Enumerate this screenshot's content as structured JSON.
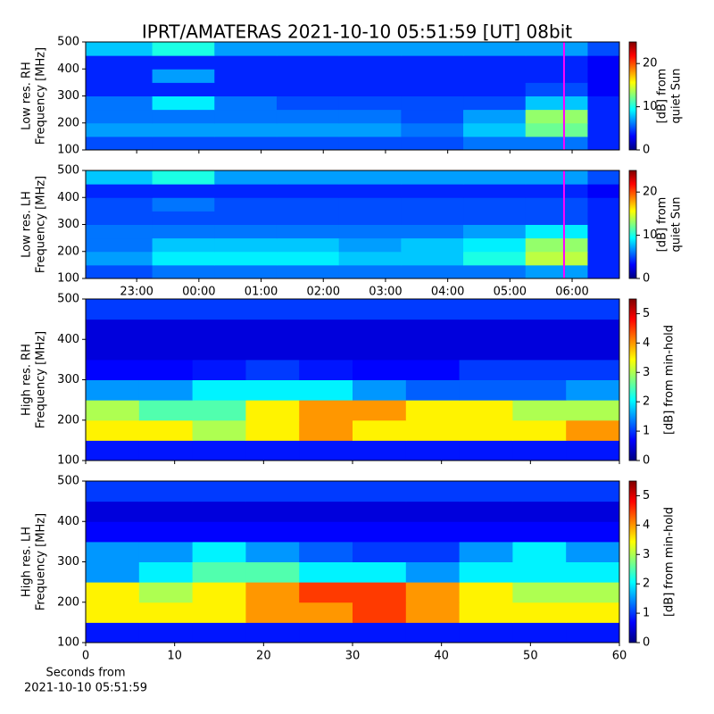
{
  "chart_data": [
    {
      "type": "heatmap",
      "title": "IPRT/AMATERAS 2021-10-10 05:51:59 [UT]   08bit",
      "ylabel": [
        "Low res. RH",
        "Frequency [MHz]"
      ],
      "colormap": "jet",
      "xlim": [
        -1.82,
        6.76
      ],
      "xticks": [
        {
          "value": -1,
          "label": "23:00"
        },
        {
          "value": 0,
          "label": "00:00"
        },
        {
          "value": 1,
          "label": "01:00"
        },
        {
          "value": 2,
          "label": "02:00"
        },
        {
          "value": 3,
          "label": "03:00"
        },
        {
          "value": 4,
          "label": "04:00"
        },
        {
          "value": 5,
          "label": "05:00"
        },
        {
          "value": 6,
          "label": "06:00"
        }
      ],
      "show_xticklabels": false,
      "ylim": [
        100,
        500
      ],
      "yticks": [
        100,
        200,
        300,
        400,
        500
      ],
      "x_edges": [
        -1.82,
        -0.75,
        0.25,
        1.25,
        2.25,
        3.25,
        4.25,
        5.25,
        6.25,
        6.76
      ],
      "y_edges": [
        100,
        150,
        200,
        250,
        300,
        350,
        400,
        450,
        500
      ],
      "z": [
        [
          5,
          5,
          5,
          5,
          5,
          5,
          6,
          6,
          4
        ],
        [
          7,
          7,
          7,
          7,
          7,
          6,
          8,
          12,
          4
        ],
        [
          6,
          6,
          6,
          6,
          6,
          5,
          7,
          13,
          4
        ],
        [
          6,
          9,
          6,
          5,
          5,
          5,
          5,
          8,
          4
        ],
        [
          4,
          4,
          4,
          4,
          4,
          4,
          4,
          5,
          3
        ],
        [
          4,
          7,
          4,
          4,
          4,
          4,
          4,
          4,
          3
        ],
        [
          4,
          4,
          4,
          4,
          4,
          4,
          4,
          4,
          3
        ],
        [
          8,
          10,
          7,
          7,
          7,
          7,
          7,
          7,
          5
        ]
      ],
      "markers": [
        {
          "x": 5.87,
          "color": "#ff00ff"
        }
      ],
      "clim": [
        0,
        25
      ],
      "cticks": [
        0,
        10,
        20
      ],
      "cbar_label": [
        "[dB] from",
        "quiet Sun"
      ]
    },
    {
      "type": "heatmap",
      "ylabel": [
        "Low res. LH",
        "Frequency [MHz]"
      ],
      "colormap": "jet",
      "xlim": [
        -1.82,
        6.76
      ],
      "xticks": [
        {
          "value": -1,
          "label": "23:00"
        },
        {
          "value": 0,
          "label": "00:00"
        },
        {
          "value": 1,
          "label": "01:00"
        },
        {
          "value": 2,
          "label": "02:00"
        },
        {
          "value": 3,
          "label": "03:00"
        },
        {
          "value": 4,
          "label": "04:00"
        },
        {
          "value": 5,
          "label": "05:00"
        },
        {
          "value": 6,
          "label": "06:00"
        }
      ],
      "show_xticklabels": true,
      "ylim": [
        100,
        500
      ],
      "yticks": [
        100,
        200,
        300,
        400,
        500
      ],
      "x_edges": [
        -1.82,
        -0.75,
        0.25,
        1.25,
        2.25,
        3.25,
        4.25,
        5.25,
        6.25,
        6.76
      ],
      "y_edges": [
        100,
        150,
        200,
        250,
        300,
        350,
        400,
        450,
        500
      ],
      "z": [
        [
          5,
          6,
          6,
          6,
          6,
          6,
          6,
          7,
          4
        ],
        [
          7,
          9,
          9,
          9,
          8,
          8,
          10,
          14,
          4
        ],
        [
          6,
          8,
          8,
          8,
          7,
          8,
          9,
          13,
          4
        ],
        [
          6,
          6,
          6,
          6,
          6,
          6,
          7,
          9,
          4
        ],
        [
          5,
          5,
          5,
          5,
          5,
          5,
          5,
          5,
          4
        ],
        [
          5,
          6,
          5,
          5,
          5,
          5,
          5,
          5,
          4
        ],
        [
          4,
          4,
          4,
          4,
          4,
          4,
          4,
          4,
          3
        ],
        [
          8,
          10,
          7,
          7,
          7,
          7,
          7,
          7,
          5
        ]
      ],
      "markers": [
        {
          "x": 5.87,
          "color": "#ff00ff"
        }
      ],
      "clim": [
        0,
        25
      ],
      "cticks": [
        0,
        10,
        20
      ],
      "cbar_label": [
        "[dB] from",
        "quiet Sun"
      ]
    },
    {
      "type": "heatmap",
      "ylabel": [
        "High res. RH",
        "Frequency [MHz]"
      ],
      "colormap": "jet",
      "xlim": [
        0,
        60
      ],
      "xticks": [
        0,
        10,
        20,
        30,
        40,
        50,
        60
      ],
      "show_xticklabels": false,
      "ylim": [
        100,
        500
      ],
      "yticks": [
        100,
        200,
        300,
        400,
        500
      ],
      "x_edges": [
        0,
        6,
        12,
        18,
        24,
        30,
        36,
        42,
        48,
        54,
        60
      ],
      "y_edges": [
        100,
        150,
        200,
        250,
        300,
        350,
        400,
        450,
        500
      ],
      "z": [
        [
          0.8,
          0.8,
          0.8,
          0.8,
          0.8,
          0.8,
          0.8,
          0.8,
          0.8,
          0.8
        ],
        [
          3.5,
          3.5,
          3,
          3.5,
          4,
          3.5,
          3.5,
          3.5,
          3.5,
          4
        ],
        [
          3,
          2.5,
          2.5,
          3.5,
          4,
          4,
          3.5,
          3.5,
          3,
          3
        ],
        [
          1.5,
          1.5,
          2,
          2,
          2,
          1.5,
          1.2,
          1.2,
          1.2,
          1.5
        ],
        [
          0.7,
          0.7,
          0.8,
          1,
          0.8,
          0.7,
          0.7,
          1,
          1,
          1
        ],
        [
          0.5,
          0.5,
          0.5,
          0.5,
          0.5,
          0.5,
          0.5,
          0.5,
          0.5,
          0.5
        ],
        [
          0.5,
          0.5,
          0.5,
          0.5,
          0.5,
          0.5,
          0.5,
          0.5,
          0.5,
          0.5
        ],
        [
          1,
          1,
          1,
          1,
          1,
          1,
          1,
          1,
          1,
          1
        ]
      ],
      "clim": [
        0,
        5.5
      ],
      "cticks": [
        0,
        1,
        2,
        3,
        4,
        5
      ],
      "cbar_label": [
        "[dB] from min-hold"
      ]
    },
    {
      "type": "heatmap",
      "ylabel": [
        "High res. LH",
        "Frequency [MHz]"
      ],
      "colormap": "jet",
      "xlim": [
        0,
        60
      ],
      "xticks": [
        0,
        10,
        20,
        30,
        40,
        50,
        60
      ],
      "show_xticklabels": true,
      "xlabel": [
        "Seconds from",
        "2021-10-10 05:51:59"
      ],
      "ylim": [
        100,
        500
      ],
      "yticks": [
        100,
        200,
        300,
        400,
        500
      ],
      "x_edges": [
        0,
        6,
        12,
        18,
        24,
        30,
        36,
        42,
        48,
        54,
        60
      ],
      "y_edges": [
        100,
        150,
        200,
        250,
        300,
        350,
        400,
        450,
        500
      ],
      "z": [
        [
          0.8,
          0.8,
          0.8,
          0.8,
          0.8,
          0.8,
          0.8,
          0.8,
          0.8,
          0.8
        ],
        [
          3.5,
          3.5,
          3.5,
          4,
          4,
          4.5,
          4,
          3.5,
          3.5,
          3.5
        ],
        [
          3.5,
          3,
          3.5,
          4,
          4.5,
          4.5,
          4,
          3.5,
          3,
          3
        ],
        [
          1.5,
          2,
          2.5,
          2.5,
          2,
          2,
          1.5,
          2,
          2,
          2
        ],
        [
          1.5,
          1.5,
          2,
          1.5,
          1.2,
          1,
          1,
          1.5,
          2,
          1.5
        ],
        [
          0.7,
          0.7,
          0.7,
          0.7,
          0.7,
          0.7,
          0.7,
          0.7,
          0.7,
          0.7
        ],
        [
          0.5,
          0.5,
          0.5,
          0.5,
          0.5,
          0.5,
          0.5,
          0.5,
          0.5,
          0.5
        ],
        [
          1,
          1,
          1,
          1,
          1,
          1,
          1,
          1,
          1,
          1
        ]
      ],
      "clim": [
        0,
        5.5
      ],
      "cticks": [
        0,
        1,
        2,
        3,
        4,
        5
      ],
      "cbar_label": [
        "[dB] from min-hold"
      ]
    }
  ]
}
